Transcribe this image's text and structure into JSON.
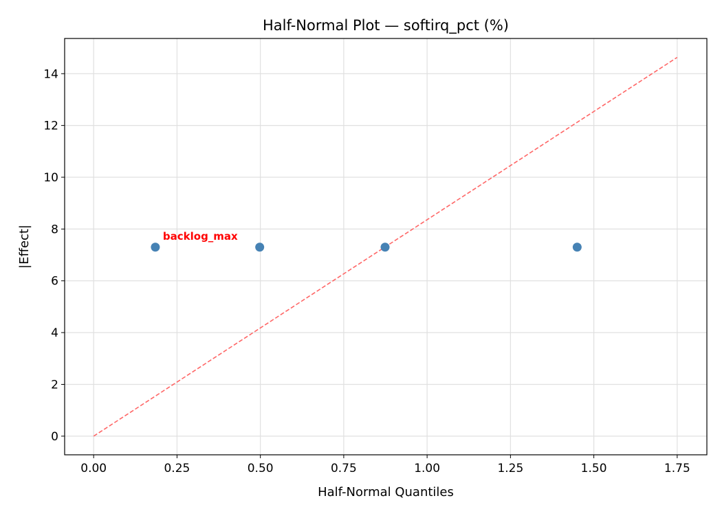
{
  "chart_data": {
    "type": "scatter",
    "title": "Half-Normal Plot — softirq_pct (%)",
    "xlabel": "Half-Normal Quantiles",
    "ylabel": "|Effect|",
    "xlim": [
      -0.087,
      1.839
    ],
    "ylim": [
      -0.72,
      15.36
    ],
    "grid": true,
    "xticks": [
      0,
      0.25,
      0.5,
      0.75,
      1.0,
      1.25,
      1.5,
      1.75
    ],
    "xtick_labels": [
      "0.00",
      "0.25",
      "0.50",
      "0.75",
      "1.00",
      "1.25",
      "1.50",
      "1.75"
    ],
    "yticks": [
      0,
      2,
      4,
      6,
      8,
      10,
      12,
      14
    ],
    "ytick_labels": [
      "0",
      "2",
      "4",
      "6",
      "8",
      "10",
      "12",
      "14"
    ],
    "points": [
      {
        "x": 0.185,
        "y": 7.3
      },
      {
        "x": 0.498,
        "y": 7.3
      },
      {
        "x": 0.874,
        "y": 7.3
      },
      {
        "x": 1.45,
        "y": 7.3
      }
    ],
    "reference_line": {
      "x": [
        0,
        1.75
      ],
      "y": [
        0,
        14.63
      ],
      "style": "dashed"
    },
    "annotations": [
      {
        "text": "backlog_max",
        "x": 0.185,
        "y": 7.3
      }
    ],
    "colors": {
      "points": "#4682b4",
      "reference_line": "#ff6666",
      "annotation": "#ff0000",
      "grid": "#e0e0e0"
    }
  }
}
